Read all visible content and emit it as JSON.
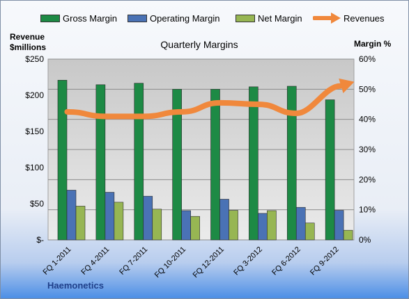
{
  "chart_data": {
    "type": "bar",
    "title": "Quarterly Margins",
    "categories": [
      "FQ 1-2011",
      "FQ 4-2011",
      "FQ 7-2011",
      "FQ 10-2011",
      "FQ 12-2011",
      "FQ 3-2012",
      "FQ 6-2012",
      "FQ 9-2012"
    ],
    "left_axis": {
      "label_line1": "Revenue",
      "label_line2": "$millions",
      "range": [
        0,
        250
      ],
      "ticks": [
        "$-",
        "$50",
        "$100",
        "$150",
        "$200",
        "$250"
      ]
    },
    "right_axis": {
      "label": "Margin %",
      "range": [
        0,
        60
      ],
      "ticks": [
        "0%",
        "10%",
        "20%",
        "30%",
        "40%",
        "50%",
        "60%"
      ]
    },
    "series": [
      {
        "name": "Gross Margin",
        "type": "bar",
        "axis": "right",
        "color": "#1d8a45",
        "values": [
          53,
          51.5,
          52,
          50,
          50,
          50.8,
          51,
          46.5
        ]
      },
      {
        "name": "Operating Margin",
        "type": "bar",
        "axis": "right",
        "color": "#4a72b5",
        "values": [
          16.5,
          15.8,
          14.5,
          9.7,
          13.5,
          8.8,
          10.8,
          9.8
        ]
      },
      {
        "name": "Net Margin",
        "type": "bar",
        "axis": "right",
        "color": "#97b653",
        "values": [
          11.2,
          12.5,
          10.2,
          7.8,
          9.8,
          9.7,
          5.6,
          3.2
        ]
      },
      {
        "name": "Revenues",
        "type": "line",
        "axis": "right",
        "color": "#f0883c",
        "values": [
          42.5,
          41,
          41,
          42.5,
          45.5,
          45,
          42,
          52
        ]
      }
    ],
    "legend_position": "top",
    "grid": true,
    "footer": "Haemonetics"
  }
}
